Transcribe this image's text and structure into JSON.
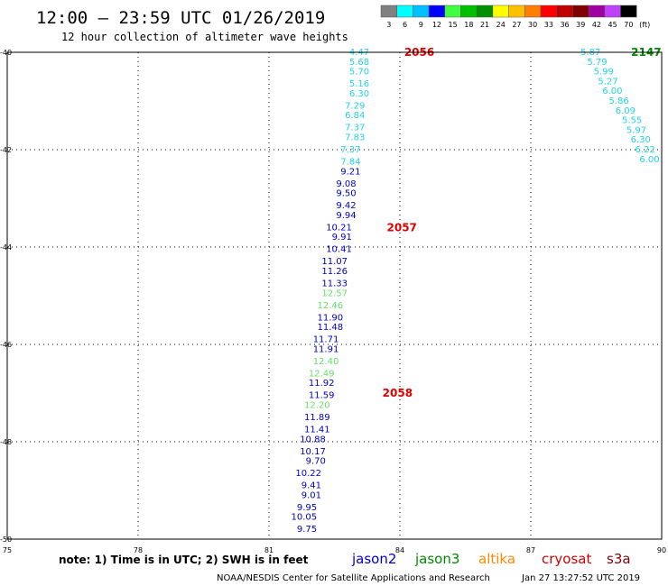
{
  "title": "12:00 – 23:59 UTC 01/26/2019",
  "subtitle": "12 hour collection of altimeter wave heights",
  "colorbar": {
    "labels": [
      "3",
      "6",
      "9",
      "12",
      "15",
      "18",
      "21",
      "24",
      "27",
      "30",
      "33",
      "36",
      "39",
      "42",
      "45",
      "70"
    ],
    "unit": "(ft)",
    "colors": [
      "#808080",
      "#00ffff",
      "#00c0ff",
      "#0000ff",
      "#40ff40",
      "#00c000",
      "#009000",
      "#ffff00",
      "#ffc000",
      "#ff8000",
      "#ff0000",
      "#c00000",
      "#800000",
      "#a000a0",
      "#c040ff",
      "#000000"
    ]
  },
  "note": "note: 1) Time is in UTC; 2) SWH is in feet",
  "missions": [
    {
      "name": "jason2",
      "color": "#0000cc"
    },
    {
      "name": "jason3",
      "color": "#008800"
    },
    {
      "name": "altika",
      "color": "#ff8800"
    },
    {
      "name": "cryosat",
      "color": "#cc0000"
    },
    {
      "name": "s3a",
      "color": "#880000"
    }
  ],
  "footer_left": "NOAA/NESDIS Center for Satellite Applications and Research",
  "footer_right": "Jan 27 13:27:52 UTC 2019",
  "chart_data": {
    "type": "scatter",
    "x_ticks": [
      "75",
      "78",
      "81",
      "84",
      "87",
      "90"
    ],
    "y_ticks": [
      "-40",
      "-42",
      "-44",
      "-46",
      "-48",
      "-50"
    ],
    "xlim": [
      75,
      90
    ],
    "ylim": [
      -50,
      -40
    ],
    "grid": true,
    "colors": {
      "cyan": "#22d3e0",
      "blue": "#0000bb",
      "green": "#66e066",
      "time": "#dd0000",
      "time_green": "#008800"
    },
    "pass_labels": [
      {
        "text": "2056",
        "lon": 84.1,
        "lat": -40.0,
        "color": "time"
      },
      {
        "text": "2057",
        "lon": 83.7,
        "lat": -43.6,
        "color": "time"
      },
      {
        "text": "2058",
        "lon": 83.6,
        "lat": -47.0,
        "color": "time"
      },
      {
        "text": "2147",
        "lon": 89.3,
        "lat": -40.0,
        "color": "time_green"
      }
    ],
    "track1": [
      {
        "v": "4.47",
        "lon": 83.3,
        "lat": -40.0,
        "c": "cyan"
      },
      {
        "v": "5.68",
        "lon": 83.3,
        "lat": -40.2,
        "c": "cyan"
      },
      {
        "v": "5.70",
        "lon": 83.3,
        "lat": -40.4,
        "c": "cyan"
      },
      {
        "v": "5.16",
        "lon": 83.3,
        "lat": -40.65,
        "c": "cyan"
      },
      {
        "v": "6.30",
        "lon": 83.3,
        "lat": -40.85,
        "c": "cyan"
      },
      {
        "v": "7.29",
        "lon": 83.2,
        "lat": -41.1,
        "c": "cyan"
      },
      {
        "v": "6.84",
        "lon": 83.2,
        "lat": -41.3,
        "c": "cyan"
      },
      {
        "v": "7.37",
        "lon": 83.2,
        "lat": -41.55,
        "c": "cyan"
      },
      {
        "v": "7.83",
        "lon": 83.2,
        "lat": -41.75,
        "c": "cyan"
      },
      {
        "v": "7.37",
        "lon": 83.1,
        "lat": -42.0,
        "c": "cyan"
      },
      {
        "v": "7.84",
        "lon": 83.1,
        "lat": -42.25,
        "c": "cyan"
      },
      {
        "v": "9.21",
        "lon": 83.1,
        "lat": -42.45,
        "c": "blue"
      },
      {
        "v": "9.08",
        "lon": 83.0,
        "lat": -42.7,
        "c": "blue"
      },
      {
        "v": "9.50",
        "lon": 83.0,
        "lat": -42.9,
        "c": "blue"
      },
      {
        "v": "9.42",
        "lon": 83.0,
        "lat": -43.15,
        "c": "blue"
      },
      {
        "v": "9.94",
        "lon": 83.0,
        "lat": -43.35,
        "c": "blue"
      },
      {
        "v": "10.21",
        "lon": 82.9,
        "lat": -43.6,
        "c": "blue"
      },
      {
        "v": "9.91",
        "lon": 82.9,
        "lat": -43.8,
        "c": "blue"
      },
      {
        "v": "10.41",
        "lon": 82.9,
        "lat": -44.05,
        "c": "blue"
      },
      {
        "v": "11.07",
        "lon": 82.8,
        "lat": -44.3,
        "c": "blue"
      },
      {
        "v": "11.26",
        "lon": 82.8,
        "lat": -44.5,
        "c": "blue"
      },
      {
        "v": "11.33",
        "lon": 82.8,
        "lat": -44.75,
        "c": "blue"
      },
      {
        "v": "12.57",
        "lon": 82.8,
        "lat": -44.95,
        "c": "green"
      },
      {
        "v": "12.46",
        "lon": 82.7,
        "lat": -45.2,
        "c": "green"
      },
      {
        "v": "11.90",
        "lon": 82.7,
        "lat": -45.45,
        "c": "blue"
      },
      {
        "v": "11.48",
        "lon": 82.7,
        "lat": -45.65,
        "c": "blue"
      },
      {
        "v": "11.71",
        "lon": 82.6,
        "lat": -45.9,
        "c": "blue"
      },
      {
        "v": "11.91",
        "lon": 82.6,
        "lat": -46.1,
        "c": "blue"
      },
      {
        "v": "12.40",
        "lon": 82.6,
        "lat": -46.35,
        "c": "green"
      },
      {
        "v": "12.49",
        "lon": 82.5,
        "lat": -46.6,
        "c": "green"
      },
      {
        "v": "11.92",
        "lon": 82.5,
        "lat": -46.8,
        "c": "blue"
      },
      {
        "v": "11.59",
        "lon": 82.5,
        "lat": -47.05,
        "c": "blue"
      },
      {
        "v": "12.20",
        "lon": 82.4,
        "lat": -47.25,
        "c": "green"
      },
      {
        "v": "11.89",
        "lon": 82.4,
        "lat": -47.5,
        "c": "blue"
      },
      {
        "v": "11.41",
        "lon": 82.4,
        "lat": -47.75,
        "c": "blue"
      },
      {
        "v": "10.88",
        "lon": 82.3,
        "lat": -47.95,
        "c": "blue"
      },
      {
        "v": "10.17",
        "lon": 82.3,
        "lat": -48.2,
        "c": "blue"
      },
      {
        "v": "9.70",
        "lon": 82.3,
        "lat": -48.4,
        "c": "blue"
      },
      {
        "v": "10.22",
        "lon": 82.2,
        "lat": -48.65,
        "c": "blue"
      },
      {
        "v": "9.41",
        "lon": 82.2,
        "lat": -48.9,
        "c": "blue"
      },
      {
        "v": "9.01",
        "lon": 82.2,
        "lat": -49.1,
        "c": "blue"
      },
      {
        "v": "9.95",
        "lon": 82.1,
        "lat": -49.35,
        "c": "blue"
      },
      {
        "v": "10.05",
        "lon": 82.1,
        "lat": -49.55,
        "c": "blue"
      },
      {
        "v": "9.75",
        "lon": 82.1,
        "lat": -49.8,
        "c": "blue"
      }
    ],
    "track2": [
      {
        "v": "5.87",
        "lon": 88.6,
        "lat": -40.0,
        "c": "cyan"
      },
      {
        "v": "5.79",
        "lon": 88.75,
        "lat": -40.2,
        "c": "cyan"
      },
      {
        "v": "5.99",
        "lon": 88.9,
        "lat": -40.4,
        "c": "cyan"
      },
      {
        "v": "5.27",
        "lon": 89.0,
        "lat": -40.6,
        "c": "cyan"
      },
      {
        "v": "6.00",
        "lon": 89.1,
        "lat": -40.8,
        "c": "cyan"
      },
      {
        "v": "5.86",
        "lon": 89.25,
        "lat": -41.0,
        "c": "cyan"
      },
      {
        "v": "6.09",
        "lon": 89.4,
        "lat": -41.2,
        "c": "cyan"
      },
      {
        "v": "5.55",
        "lon": 89.55,
        "lat": -41.4,
        "c": "cyan"
      },
      {
        "v": "5.97",
        "lon": 89.65,
        "lat": -41.6,
        "c": "cyan"
      },
      {
        "v": "6.30",
        "lon": 89.75,
        "lat": -41.8,
        "c": "cyan"
      },
      {
        "v": "6.22",
        "lon": 89.85,
        "lat": -42.0,
        "c": "cyan"
      },
      {
        "v": "6.00",
        "lon": 89.95,
        "lat": -42.2,
        "c": "cyan"
      }
    ]
  }
}
